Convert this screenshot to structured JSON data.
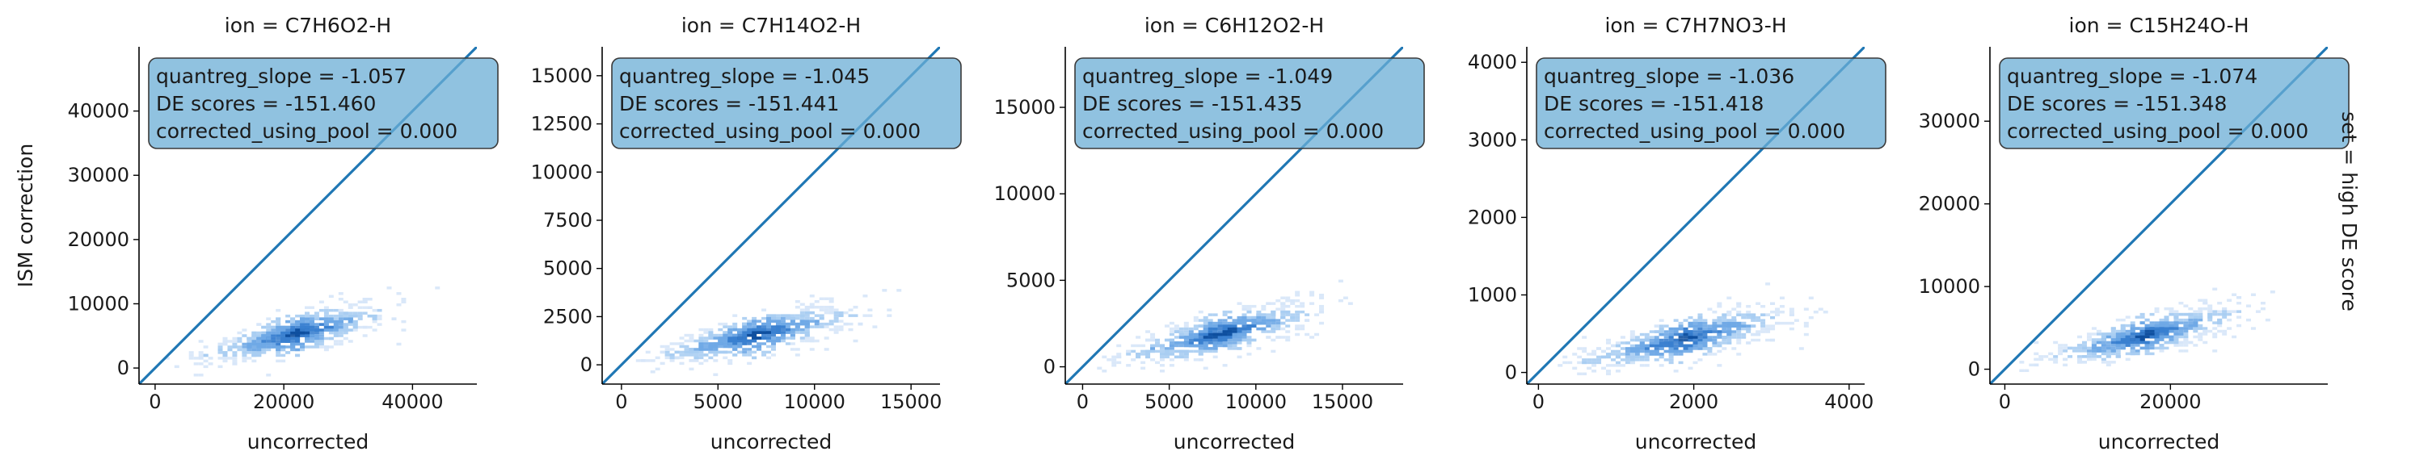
{
  "figure": {
    "row_label": "set = high DE score",
    "accent_color": "#1f77b4",
    "box_color": "#6baed6",
    "density_colors": [
      "#d6e6f8",
      "#a9cdf2",
      "#6fa9e6",
      "#3a80cf",
      "#0e4f9e"
    ]
  },
  "chart_data": [
    {
      "type": "scatter",
      "title": "ion = C7H6O2-H",
      "xlabel": "uncorrected",
      "ylabel": "ISM correction",
      "xlim": [
        -2500,
        50000
      ],
      "ylim": [
        -2500,
        50000
      ],
      "xticks": [
        0,
        20000,
        40000
      ],
      "xtick_labels": [
        "0",
        "20000",
        "40000"
      ],
      "yticks": [
        0,
        10000,
        20000,
        30000,
        40000
      ],
      "ytick_labels": [
        "0",
        "10000",
        "20000",
        "30000",
        "40000"
      ],
      "annotation": [
        "quantreg_slope = -1.057",
        "DE scores = -151.460",
        "corrected_using_pool = 0.000"
      ],
      "identity_line": true,
      "density": {
        "x_min": 2000,
        "x_max": 45000,
        "x_center": 22000,
        "slope": 0.24,
        "y_spread": 1500,
        "x_spread": 7000
      }
    },
    {
      "type": "scatter",
      "title": "ion = C7H14O2-H",
      "xlabel": "uncorrected",
      "ylabel": "",
      "xlim": [
        -1000,
        16500
      ],
      "ylim": [
        -1000,
        16500
      ],
      "xticks": [
        0,
        5000,
        10000,
        15000
      ],
      "xtick_labels": [
        "0",
        "5000",
        "10000",
        "15000"
      ],
      "yticks": [
        0,
        2500,
        5000,
        7500,
        10000,
        12500,
        15000
      ],
      "ytick_labels": [
        "0",
        "2500",
        "5000",
        "7500",
        "10000",
        "12500",
        "15000"
      ],
      "annotation": [
        "quantreg_slope = -1.045",
        "DE scores = -151.441",
        "corrected_using_pool = 0.000"
      ],
      "identity_line": true,
      "density": {
        "x_min": 800,
        "x_max": 15500,
        "x_center": 7000,
        "slope": 0.22,
        "y_spread": 500,
        "x_spread": 2500
      }
    },
    {
      "type": "scatter",
      "title": "ion = C6H12O2-H",
      "xlabel": "uncorrected",
      "ylabel": "",
      "xlim": [
        -1000,
        18500
      ],
      "ylim": [
        -1000,
        18500
      ],
      "xticks": [
        0,
        5000,
        10000,
        15000
      ],
      "xtick_labels": [
        "0",
        "5000",
        "10000",
        "15000"
      ],
      "yticks": [
        0,
        5000,
        10000,
        15000
      ],
      "ytick_labels": [
        "0",
        "5000",
        "10000",
        "15000"
      ],
      "annotation": [
        "quantreg_slope = -1.049",
        "DE scores = -151.435",
        "corrected_using_pool = 0.000"
      ],
      "identity_line": true,
      "density": {
        "x_min": 800,
        "x_max": 16000,
        "x_center": 8000,
        "slope": 0.24,
        "y_spread": 550,
        "x_spread": 2800
      }
    },
    {
      "type": "scatter",
      "title": "ion = C7H7NO3-H",
      "xlabel": "uncorrected",
      "ylabel": "",
      "xlim": [
        -150,
        4200
      ],
      "ylim": [
        -150,
        4200
      ],
      "xticks": [
        0,
        2000,
        4000
      ],
      "xtick_labels": [
        "0",
        "2000",
        "4000"
      ],
      "yticks": [
        0,
        1000,
        2000,
        3000,
        4000
      ],
      "ytick_labels": [
        "0",
        "1000",
        "2000",
        "3000",
        "4000"
      ],
      "annotation": [
        "quantreg_slope = -1.036",
        "DE scores = -151.418",
        "corrected_using_pool = 0.000"
      ],
      "identity_line": true,
      "density": {
        "x_min": 200,
        "x_max": 3800,
        "x_center": 1900,
        "slope": 0.23,
        "y_spread": 130,
        "x_spread": 650
      }
    },
    {
      "type": "scatter",
      "title": "ion = C15H24O-H",
      "xlabel": "uncorrected",
      "ylabel": "",
      "xlim": [
        -1800,
        39000
      ],
      "ylim": [
        -1800,
        39000
      ],
      "xticks": [
        0,
        20000
      ],
      "xtick_labels": [
        "0",
        "20000"
      ],
      "yticks": [
        0,
        10000,
        20000,
        30000
      ],
      "ytick_labels": [
        "0",
        "10000",
        "20000",
        "30000"
      ],
      "annotation": [
        "quantreg_slope = -1.074",
        "DE scores = -151.348",
        "corrected_using_pool = 0.000"
      ],
      "identity_line": true,
      "density": {
        "x_min": 1500,
        "x_max": 33000,
        "x_center": 17000,
        "slope": 0.24,
        "y_spread": 1100,
        "x_spread": 5500
      }
    }
  ]
}
